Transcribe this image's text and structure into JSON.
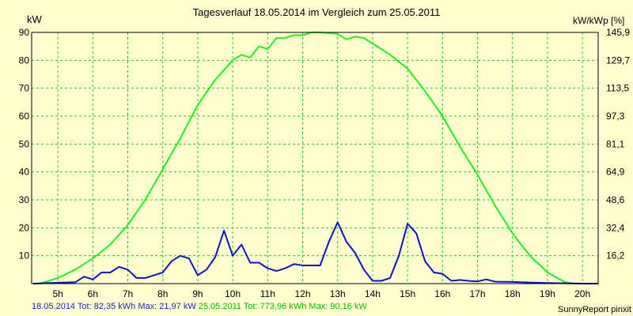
{
  "chart_data": {
    "type": "line",
    "title": "Tagesverlauf 18.05.2014 im Vergleich zum 25.05.2011",
    "ylabel": "kW",
    "y2label": "kW/kWp [%]",
    "ylim": [
      0,
      90
    ],
    "y2lim": [
      0,
      145.9
    ],
    "yticks": [
      10,
      20,
      30,
      40,
      50,
      60,
      70,
      80,
      90
    ],
    "y2ticks": [
      "16,2",
      "32,4",
      "48,6",
      "64,9",
      "81,1",
      "97,3",
      "113,5",
      "129,7",
      "145,9"
    ],
    "xlim": [
      4.25,
      20.45
    ],
    "xticks": [
      "5h",
      "6h",
      "7h",
      "8h",
      "9h",
      "10h",
      "11h",
      "12h",
      "13h",
      "14h",
      "15h",
      "16h",
      "17h",
      "18h",
      "19h",
      "20h"
    ],
    "grid": true,
    "series": [
      {
        "name": "25.05.2011",
        "color": "#22ee22",
        "x": [
          4.3,
          4.5,
          5.0,
          5.5,
          6.0,
          6.5,
          7.0,
          7.5,
          8.0,
          8.5,
          9.0,
          9.5,
          10.0,
          10.25,
          10.5,
          10.75,
          11.0,
          11.25,
          11.5,
          11.75,
          12.0,
          12.25,
          12.5,
          13.0,
          13.25,
          13.5,
          13.75,
          14.0,
          14.5,
          15.0,
          15.5,
          16.0,
          16.5,
          17.0,
          17.5,
          18.0,
          18.5,
          19.0,
          19.5,
          19.75,
          20.0,
          20.45
        ],
        "y": [
          0,
          0,
          2,
          5,
          9,
          14,
          21,
          30,
          41,
          52,
          64,
          73,
          80,
          82,
          81,
          85,
          84,
          88,
          88,
          89,
          89,
          90,
          90,
          89.5,
          87.5,
          88.5,
          88,
          86,
          82,
          77,
          69,
          60,
          49,
          39,
          28,
          18,
          10,
          4,
          0.5,
          0,
          0,
          0
        ]
      },
      {
        "name": "18.05.2014",
        "color": "#1010c8",
        "x": [
          4.3,
          5.0,
          5.5,
          5.75,
          6.0,
          6.25,
          6.5,
          6.75,
          7.0,
          7.25,
          7.5,
          7.75,
          8.0,
          8.25,
          8.5,
          8.75,
          9.0,
          9.25,
          9.5,
          9.75,
          10.0,
          10.25,
          10.5,
          10.75,
          11.0,
          11.25,
          11.5,
          11.75,
          12.0,
          12.25,
          12.5,
          12.75,
          13.0,
          13.25,
          13.5,
          13.75,
          14.0,
          14.25,
          14.5,
          14.75,
          15.0,
          15.25,
          15.5,
          15.75,
          16.0,
          16.25,
          16.5,
          16.75,
          17.0,
          17.25,
          17.5,
          18.0,
          18.5,
          19.0,
          19.5,
          20.0,
          20.45
        ],
        "y": [
          0,
          0.3,
          0.5,
          2.5,
          1.5,
          4,
          4,
          6,
          5,
          2,
          2,
          3,
          4,
          8,
          10,
          9,
          3,
          5,
          9.5,
          19,
          10,
          14,
          7.5,
          7.5,
          5.5,
          4.5,
          5.5,
          7,
          6.5,
          6.5,
          6.5,
          15,
          22,
          15,
          11,
          5,
          1,
          1,
          2,
          10,
          21.5,
          18,
          8,
          4,
          3.5,
          1,
          1.3,
          1,
          0.8,
          1.5,
          0.7,
          0.6,
          0.4,
          0.2,
          0.1,
          0,
          0
        ]
      }
    ]
  },
  "footer": {
    "blue_text": "18.05.2014 Tot: 82,35 kWh Max: 21,97 kW",
    "green_text": "25.05.2011 Tot: 773,96 kWh Max: 90,16 kW",
    "credit": "SunnyReport pinxit"
  }
}
